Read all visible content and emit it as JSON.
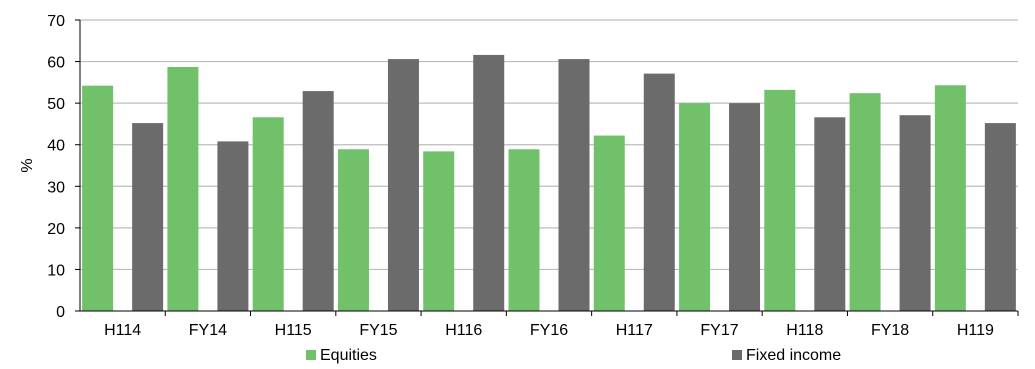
{
  "chart_data": {
    "type": "bar",
    "categories": [
      "H114",
      "FY14",
      "H115",
      "FY15",
      "H116",
      "FY16",
      "H117",
      "FY17",
      "H118",
      "FY18",
      "H119"
    ],
    "series": [
      {
        "name": "Equities",
        "color": "#70c16a",
        "values": [
          54.2,
          58.7,
          46.6,
          38.9,
          38.4,
          38.9,
          42.2,
          50.0,
          53.2,
          52.4,
          54.3
        ]
      },
      {
        "name": "Fixed income",
        "color": "#6b6b6b",
        "values": [
          45.2,
          40.8,
          52.9,
          60.6,
          61.6,
          60.6,
          57.1,
          50.0,
          46.6,
          47.1,
          45.2
        ]
      }
    ],
    "title": "",
    "xlabel": "",
    "ylabel": "%",
    "ylim": [
      0,
      70
    ],
    "yticks": [
      "0",
      "10",
      "20",
      "30",
      "40",
      "50",
      "60",
      "70"
    ],
    "grid": true,
    "legend_position": "bottom"
  }
}
